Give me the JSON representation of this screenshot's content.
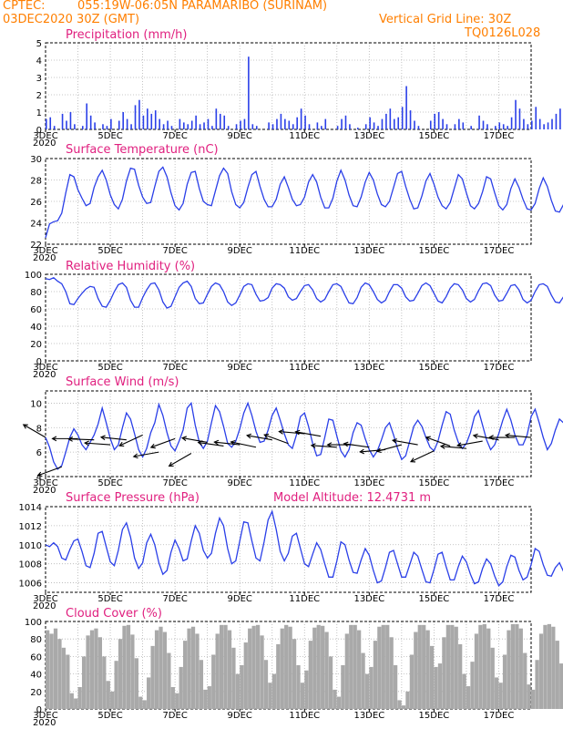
{
  "header": {
    "source": "CPTEC:",
    "location": "055:19W-06:05N   PARAMARIBO (SURINAM)",
    "run": "03DEC2020 30Z (GMT)",
    "grid_note": "Vertical Grid Line: 30Z",
    "model_code": "TQ0126L028"
  },
  "colors": {
    "header": "#ff7f00",
    "panel_title": "#e0207f",
    "series": "#2a3fe8",
    "cloud": "#a9a9a9",
    "arrow": "#000000"
  },
  "x_axis": {
    "day_labels": [
      "3DEC",
      "5DEC",
      "7DEC",
      "9DEC",
      "11DEC",
      "13DEC",
      "15DEC",
      "17DEC"
    ],
    "year_stub": "2020"
  },
  "chart_data": [
    {
      "id": "precip",
      "type": "bar",
      "title": "Precipitation (mm/h)",
      "ylim": [
        0,
        5
      ],
      "yticks": [
        0,
        1,
        2,
        3,
        4,
        5
      ],
      "x_start_day": 3,
      "x_end_day": 18,
      "step_hours": 3,
      "values": [
        0.6,
        0.7,
        0.2,
        0,
        0.9,
        0.5,
        1.0,
        0.3,
        0,
        0.2,
        1.5,
        0.8,
        0.4,
        0,
        0.3,
        0.2,
        0.6,
        0,
        0.5,
        1.0,
        0.6,
        0.3,
        1.4,
        1.7,
        0.8,
        1.2,
        0.9,
        1.1,
        0.6,
        0.3,
        0.5,
        0.2,
        0,
        0.6,
        0.4,
        0.3,
        0.5,
        0.8,
        0.3,
        0.4,
        0.6,
        0.2,
        1.2,
        0.9,
        0.8,
        0.2,
        0,
        0.3,
        0.5,
        0.6,
        4.2,
        0.3,
        0.2,
        0,
        0,
        0.4,
        0.3,
        0.6,
        0.9,
        0.6,
        0.5,
        0.3,
        0.7,
        1.2,
        0.8,
        0.3,
        0,
        0.4,
        0.2,
        0.6,
        0,
        0,
        0.2,
        0.6,
        0.8,
        0.3,
        0,
        0.1,
        0,
        0.3,
        0.7,
        0.4,
        0.2,
        0.6,
        0.9,
        1.2,
        0.6,
        0.7,
        1.3,
        2.5,
        1.1,
        0.5,
        0.2,
        0,
        0,
        0.5,
        0.9,
        1.0,
        0.6,
        0.3,
        0,
        0.3,
        0.6,
        0.4,
        0,
        0.2,
        0,
        0.8,
        0.5,
        0.3,
        0,
        0.2,
        0.4,
        0.3,
        0.2,
        0.7,
        1.7,
        1.2,
        0.6,
        0.3,
        0.5,
        1.3,
        0.6,
        0.3,
        0.4,
        0.6,
        0.9,
        1.2,
        0.3,
        0.2,
        0.6,
        2.2,
        1.8,
        0.8,
        0.5,
        0.3,
        1.2,
        0.7,
        0.5,
        0.3,
        0.6,
        0.8,
        2.9,
        1.6,
        0.5,
        0.4,
        0.2,
        0.6,
        0.9,
        0.8,
        1.0,
        0.4,
        0.7,
        1.1,
        1.0,
        0.6,
        0.3,
        0.2,
        1.3,
        1.2,
        0.9,
        0.3,
        0.4,
        0.6,
        1.0,
        1.1,
        0.6,
        0.3,
        0.5,
        1.3,
        0.8,
        0.6
      ]
    },
    {
      "id": "temp",
      "type": "line",
      "title": "Surface Temperature (nC)",
      "ylim": [
        22,
        30
      ],
      "yticks": [
        22,
        24,
        26,
        28,
        30
      ],
      "x_start_day": 3,
      "x_end_day": 18,
      "step_hours": 3,
      "values": [
        22.6,
        23.9,
        24.1,
        24.2,
        24.9,
        26.8,
        28.5,
        28.3,
        27.1,
        26.3,
        25.6,
        25.8,
        27.3,
        28.3,
        28.9,
        28.0,
        26.6,
        25.7,
        25.3,
        26.2,
        27.9,
        29.1,
        29.0,
        27.5,
        26.4,
        25.8,
        25.9,
        27.4,
        28.8,
        29.2,
        28.3,
        26.8,
        25.6,
        25.2,
        25.8,
        27.6,
        28.7,
        28.8,
        27.2,
        26.0,
        25.7,
        25.6,
        27.0,
        28.4,
        29.1,
        28.6,
        26.9,
        25.7,
        25.4,
        25.9,
        27.3,
        28.5,
        28.8,
        27.4,
        26.2,
        25.5,
        25.5,
        26.2,
        27.6,
        28.3,
        27.3,
        26.2,
        25.6,
        25.7,
        26.4,
        27.8,
        28.5,
        27.8,
        26.4,
        25.4,
        25.4,
        26.3,
        27.9,
        28.9,
        28.0,
        26.6,
        25.6,
        25.5,
        26.4,
        27.8,
        28.7,
        28.0,
        26.7,
        25.7,
        25.5,
        26.0,
        27.3,
        28.6,
        28.8,
        27.4,
        26.2,
        25.3,
        25.4,
        26.5,
        27.9,
        28.6,
        27.6,
        26.4,
        25.6,
        25.3,
        25.9,
        27.2,
        28.5,
        28.1,
        26.8,
        25.6,
        25.3,
        25.8,
        26.9,
        28.3,
        28.1,
        26.8,
        25.6,
        25.2,
        25.7,
        27.2,
        28.1,
        27.3,
        26.2,
        25.3,
        25.2,
        25.8,
        27.2,
        28.2,
        27.4,
        26.1,
        25.1,
        25.0,
        25.7,
        27.0,
        28.5,
        27.8,
        26.4,
        25.1,
        24.9,
        25.6,
        26.2,
        26.1,
        26.2
      ]
    },
    {
      "id": "rh",
      "type": "line",
      "title": "Relative Humidity (%)",
      "ylim": [
        0,
        100
      ],
      "yticks": [
        0,
        20,
        40,
        60,
        80,
        100
      ],
      "x_start_day": 3,
      "x_end_day": 18,
      "step_hours": 3,
      "values": [
        95,
        94,
        96,
        92,
        89,
        80,
        66,
        65,
        72,
        78,
        83,
        86,
        85,
        72,
        63,
        62,
        70,
        80,
        88,
        90,
        85,
        70,
        62,
        62,
        73,
        82,
        89,
        90,
        82,
        68,
        61,
        63,
        74,
        85,
        90,
        92,
        86,
        72,
        66,
        67,
        77,
        86,
        90,
        88,
        80,
        68,
        64,
        67,
        76,
        86,
        89,
        88,
        77,
        69,
        70,
        73,
        84,
        89,
        88,
        84,
        74,
        70,
        72,
        80,
        87,
        88,
        82,
        72,
        68,
        71,
        80,
        88,
        89,
        86,
        76,
        67,
        66,
        73,
        85,
        90,
        88,
        80,
        71,
        67,
        70,
        80,
        88,
        88,
        84,
        74,
        69,
        70,
        78,
        87,
        90,
        87,
        78,
        69,
        67,
        74,
        84,
        89,
        88,
        82,
        72,
        68,
        71,
        81,
        89,
        90,
        87,
        76,
        69,
        70,
        78,
        87,
        88,
        82,
        71,
        67,
        70,
        80,
        88,
        89,
        86,
        76,
        68,
        67,
        74,
        86,
        92,
        93,
        86,
        76,
        78,
        79,
        80
      ]
    },
    {
      "id": "wind",
      "type": "line",
      "title": "Surface Wind (m/s)",
      "ylim": [
        4,
        11
      ],
      "yticks": [
        4,
        6,
        8,
        10
      ],
      "x_start_day": 3,
      "x_end_day": 18,
      "step_hours": 3,
      "values": [
        7.2,
        6.4,
        5.2,
        4.6,
        4.9,
        6.0,
        7.2,
        7.9,
        7.4,
        6.6,
        6.2,
        6.8,
        7.4,
        8.3,
        9.6,
        8.4,
        7.1,
        6.2,
        6.6,
        8.0,
        9.2,
        8.7,
        7.5,
        6.2,
        5.6,
        6.3,
        7.6,
        8.4,
        9.9,
        9.0,
        7.6,
        6.5,
        6.1,
        6.9,
        7.8,
        9.6,
        10.0,
        8.2,
        6.8,
        6.3,
        6.9,
        8.4,
        9.8,
        9.3,
        8.1,
        6.7,
        6.4,
        6.9,
        7.9,
        9.2,
        10.0,
        9.0,
        7.7,
        6.8,
        6.9,
        7.8,
        9.0,
        9.6,
        8.6,
        7.5,
        6.6,
        6.3,
        7.4,
        8.9,
        9.2,
        8.1,
        6.7,
        5.7,
        5.8,
        7.2,
        8.7,
        8.6,
        7.3,
        6.1,
        5.6,
        6.2,
        7.6,
        8.4,
        8.2,
        7.1,
        6.2,
        5.6,
        6.1,
        7.0,
        8.0,
        8.4,
        7.4,
        6.3,
        5.4,
        5.7,
        6.9,
        8.1,
        8.6,
        8.1,
        7.2,
        6.4,
        6.1,
        6.9,
        8.2,
        9.3,
        9.1,
        7.8,
        6.8,
        6.3,
        6.7,
        7.6,
        8.9,
        9.4,
        8.2,
        7.0,
        6.2,
        6.6,
        7.5,
        8.6,
        9.5,
        8.6,
        7.4,
        6.6,
        6.6,
        7.4,
        8.9,
        9.5,
        8.4,
        7.2,
        6.2,
        6.7,
        7.8,
        8.7,
        8.4,
        7.2,
        6.1,
        6.4,
        7.3,
        8.1,
        7.4,
        6.7,
        6.3
      ]
    },
    {
      "id": "pres",
      "type": "line",
      "title": "Surface Pressure (hPa)",
      "annotation": "Model Altitude: 12.4731 m",
      "ylim": [
        1005,
        1014
      ],
      "yticks": [
        1006,
        1008,
        1010,
        1012,
        1014
      ],
      "x_start_day": 3,
      "x_end_day": 18,
      "step_hours": 3,
      "values": [
        1010.0,
        1009.8,
        1010.2,
        1009.8,
        1008.6,
        1008.4,
        1009.5,
        1010.4,
        1010.6,
        1009.3,
        1007.8,
        1007.6,
        1009.1,
        1011.2,
        1011.4,
        1009.8,
        1008.2,
        1007.8,
        1009.4,
        1011.6,
        1012.3,
        1010.8,
        1008.6,
        1007.5,
        1008.1,
        1010.2,
        1011.1,
        1010.0,
        1008.1,
        1006.9,
        1007.3,
        1009.2,
        1010.5,
        1009.6,
        1008.3,
        1008.5,
        1010.4,
        1012.0,
        1011.2,
        1009.4,
        1008.6,
        1009.1,
        1011.2,
        1012.8,
        1012.0,
        1009.6,
        1008.0,
        1008.3,
        1010.4,
        1012.4,
        1012.3,
        1010.4,
        1008.6,
        1008.3,
        1010.3,
        1012.6,
        1013.5,
        1011.6,
        1009.3,
        1008.3,
        1009.1,
        1010.9,
        1011.2,
        1009.6,
        1008.0,
        1007.7,
        1009.0,
        1010.2,
        1009.5,
        1008.0,
        1006.6,
        1006.6,
        1008.3,
        1010.3,
        1010.0,
        1008.4,
        1007.1,
        1007.0,
        1008.4,
        1009.6,
        1008.9,
        1007.3,
        1006.0,
        1006.2,
        1007.6,
        1009.2,
        1009.4,
        1008.0,
        1006.6,
        1006.6,
        1007.9,
        1009.2,
        1008.8,
        1007.4,
        1006.1,
        1006.0,
        1007.4,
        1009.0,
        1009.2,
        1007.7,
        1006.3,
        1006.3,
        1007.7,
        1008.8,
        1008.2,
        1006.9,
        1005.9,
        1006.1,
        1007.5,
        1008.5,
        1008.0,
        1006.7,
        1005.7,
        1006.1,
        1007.7,
        1008.9,
        1008.7,
        1007.3,
        1006.3,
        1006.6,
        1007.9,
        1009.6,
        1009.3,
        1007.9,
        1006.8,
        1006.7,
        1007.6,
        1008.1,
        1007.2,
        1006.0,
        1005.6,
        1006.2,
        1007.4,
        1008.2,
        1007.0,
        1006.2,
        1007.0,
        1007.8
      ]
    },
    {
      "id": "cloud",
      "type": "bar",
      "title": "Cloud Cover (%)",
      "ylim": [
        0,
        100
      ],
      "yticks": [
        0,
        20,
        40,
        60,
        80,
        100
      ],
      "x_start_day": 3,
      "x_end_day": 18,
      "step_hours": 3,
      "values": [
        90,
        86,
        92,
        80,
        70,
        62,
        18,
        12,
        25,
        60,
        84,
        90,
        92,
        82,
        60,
        32,
        20,
        55,
        80,
        95,
        96,
        85,
        58,
        14,
        10,
        36,
        72,
        90,
        94,
        88,
        64,
        25,
        18,
        48,
        78,
        92,
        94,
        86,
        56,
        22,
        26,
        62,
        86,
        96,
        96,
        90,
        70,
        40,
        50,
        76,
        92,
        95,
        96,
        84,
        56,
        30,
        40,
        74,
        92,
        96,
        94,
        80,
        50,
        30,
        44,
        78,
        93,
        96,
        95,
        88,
        60,
        22,
        14,
        50,
        86,
        96,
        96,
        90,
        64,
        40,
        48,
        78,
        94,
        96,
        96,
        82,
        50,
        10,
        4,
        20,
        62,
        88,
        96,
        96,
        90,
        72,
        48,
        52,
        82,
        96,
        96,
        94,
        74,
        40,
        26,
        54,
        86,
        96,
        97,
        92,
        70,
        36,
        30,
        62,
        90,
        97,
        97,
        92,
        64,
        28,
        22,
        56,
        86,
        96,
        97,
        94,
        78,
        52,
        58,
        82,
        95,
        97,
        98,
        96,
        84,
        74,
        86,
        95
      ]
    },
    {
      "id": "wind_vectors",
      "type": "scatter",
      "title": "",
      "note": "direction of arrows (towards), degrees from east, counter-clockwise",
      "x_days": [
        3.0,
        3.5,
        4.0,
        4.5,
        5.0,
        5.5,
        6.0,
        6.5,
        7.0,
        7.5,
        8.0,
        8.5,
        9.0,
        9.5,
        10.0,
        10.5,
        11.0,
        11.5,
        12.0,
        12.5,
        13.0,
        13.5,
        14.0,
        14.5,
        15.0,
        15.5,
        16.0,
        16.5,
        17.0,
        17.5,
        18.0
      ],
      "speed": [
        7.2,
        4.8,
        7.1,
        7.0,
        6.6,
        7.0,
        7.4,
        6.0,
        7.1,
        5.9,
        6.8,
        6.5,
        6.6,
        6.4,
        7.0,
        6.7,
        7.5,
        7.3,
        6.4,
        6.6,
        6.4,
        6.2,
        6.6,
        6.6,
        6.1,
        6.5,
        6.3,
        6.9,
        7.0,
        7.2,
        7.2
      ],
      "angle_deg": [
        150,
        200,
        180,
        178,
        176,
        174,
        205,
        190,
        200,
        210,
        170,
        172,
        174,
        168,
        170,
        160,
        175,
        170,
        176,
        180,
        172,
        185,
        195,
        170,
        205,
        160,
        175,
        190,
        170,
        180,
        175
      ]
    }
  ]
}
